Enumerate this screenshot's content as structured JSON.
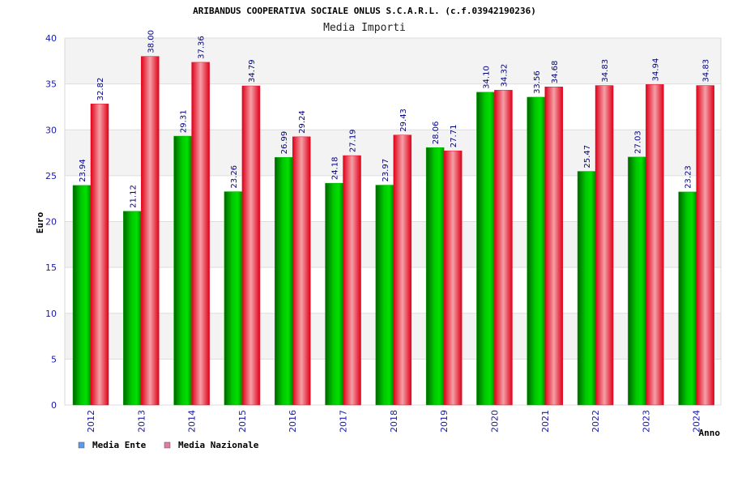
{
  "header": {
    "title": "ARIBANDUS COOPERATIVA SOCIALE ONLUS S.C.A.R.L. (c.f.03942190236)",
    "subtitle": "Media Importi"
  },
  "colors": {
    "ente": "#00b400",
    "nazionale": "#e8102a",
    "legend_ente": "#5a9ae6",
    "legend_nazionale": "#e07aa6",
    "tick_text": "#1a1aa6",
    "value_text": "#000080"
  },
  "chart_data": {
    "type": "bar",
    "title": "ARIBANDUS COOPERATIVA SOCIALE ONLUS S.C.A.R.L. (c.f.03942190236)",
    "subtitle": "Media Importi",
    "xlabel": "Anno",
    "ylabel": "Euro",
    "ylim": [
      0,
      40
    ],
    "yticks": [
      0,
      5,
      10,
      15,
      20,
      25,
      30,
      35,
      40
    ],
    "grid": true,
    "legend_position": "bottom-left",
    "categories": [
      "2012",
      "2013",
      "2014",
      "2015",
      "2016",
      "2017",
      "2018",
      "2019",
      "2020",
      "2021",
      "2022",
      "2023",
      "2024"
    ],
    "series": [
      {
        "name": "Media Ente",
        "values": [
          23.94,
          21.12,
          29.31,
          23.26,
          26.99,
          24.18,
          23.97,
          28.06,
          34.1,
          33.56,
          25.47,
          27.03,
          23.23
        ],
        "labels": [
          "23.94",
          "21.12",
          "29.31",
          "23.26",
          "26.99",
          "24.18",
          "23.97",
          "28.06",
          "34.10",
          "33.56",
          "25.47",
          "27.03",
          "23.23"
        ]
      },
      {
        "name": "Media Nazionale",
        "values": [
          32.82,
          38.0,
          37.36,
          34.79,
          29.24,
          27.19,
          29.43,
          27.71,
          34.32,
          34.68,
          34.83,
          34.94,
          34.83
        ],
        "labels": [
          "32.82",
          "38.00",
          "37.36",
          "34.79",
          "29.24",
          "27.19",
          "29.43",
          "27.71",
          "34.32",
          "34.68",
          "34.83",
          "34.94",
          "34.83"
        ]
      }
    ]
  }
}
